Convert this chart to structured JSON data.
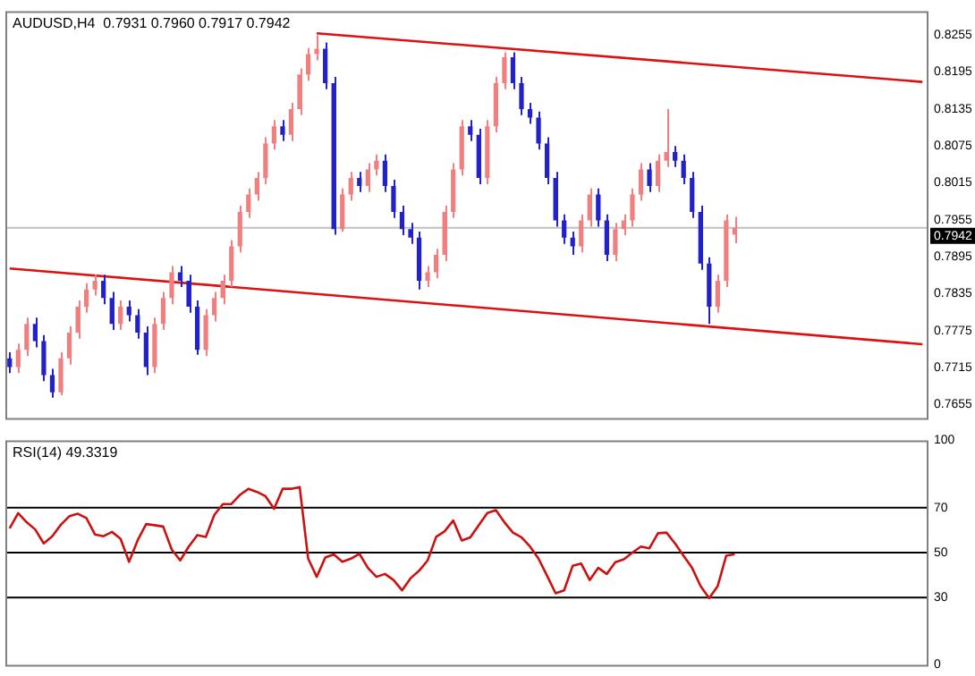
{
  "chart_data": [
    {
      "type": "candlestick",
      "title": "AUDUSD,H4  0.7931 0.7960 0.7917 0.7942",
      "categories": [
        null,
        null,
        null,
        null,
        null,
        null,
        null,
        null,
        null,
        null,
        null,
        null,
        null,
        null,
        null,
        null,
        null,
        null,
        null,
        null,
        null,
        null,
        null,
        null,
        null,
        null,
        null,
        null,
        null,
        null,
        null,
        null,
        null,
        null,
        null,
        null,
        null,
        null,
        null,
        null,
        null,
        null,
        null,
        null,
        null,
        null,
        null,
        null,
        null,
        null,
        null,
        null,
        null,
        null,
        null,
        null,
        null,
        null,
        null,
        null,
        null,
        null,
        null,
        null,
        null,
        null,
        null,
        null,
        null,
        null,
        null,
        null,
        null,
        null,
        null,
        null,
        null,
        null,
        null,
        null,
        null,
        null,
        null,
        null,
        null,
        null,
        null,
        null,
        null,
        null,
        null,
        null,
        null,
        null,
        null,
        null,
        null,
        null,
        null,
        null,
        null,
        null,
        null,
        null,
        null,
        null,
        null,
        null
      ],
      "ohlc": [
        [
          0.773,
          0.774,
          0.7706,
          0.7716
        ],
        [
          0.7716,
          0.7754,
          0.7706,
          0.7744
        ],
        [
          0.7744,
          0.7796,
          0.7734,
          0.7786
        ],
        [
          0.7786,
          0.7796,
          0.7748,
          0.7758
        ],
        [
          0.7758,
          0.7768,
          0.7693,
          0.7703
        ],
        [
          0.7703,
          0.7713,
          0.7666,
          0.7675
        ],
        [
          0.7675,
          0.774,
          0.767,
          0.773
        ],
        [
          0.773,
          0.7782,
          0.772,
          0.7772
        ],
        [
          0.7772,
          0.7824,
          0.7762,
          0.7814
        ],
        [
          0.7814,
          0.7852,
          0.7804,
          0.7842
        ],
        [
          0.7842,
          0.7866,
          0.7832,
          0.7856
        ],
        [
          0.7856,
          0.7866,
          0.7818,
          0.7828
        ],
        [
          0.7828,
          0.7838,
          0.7776,
          0.7786
        ],
        [
          0.7786,
          0.7824,
          0.7776,
          0.7814
        ],
        [
          0.7814,
          0.7824,
          0.779,
          0.78
        ],
        [
          0.78,
          0.781,
          0.7762,
          0.7772
        ],
        [
          0.7772,
          0.7782,
          0.7703,
          0.7716
        ],
        [
          0.7716,
          0.7796,
          0.7706,
          0.7786
        ],
        [
          0.7786,
          0.7838,
          0.7776,
          0.7828
        ],
        [
          0.7828,
          0.788,
          0.7818,
          0.787
        ],
        [
          0.787,
          0.788,
          0.7846,
          0.7856
        ],
        [
          0.7856,
          0.7866,
          0.7804,
          0.7814
        ],
        [
          0.7814,
          0.7824,
          0.7736,
          0.7744
        ],
        [
          0.7744,
          0.781,
          0.7734,
          0.78
        ],
        [
          0.78,
          0.7838,
          0.779,
          0.7828
        ],
        [
          0.7828,
          0.7866,
          0.7818,
          0.7856
        ],
        [
          0.7856,
          0.7922,
          0.7846,
          0.7912
        ],
        [
          0.7912,
          0.7978,
          0.7902,
          0.7968
        ],
        [
          0.7968,
          0.8006,
          0.7958,
          0.7996
        ],
        [
          0.7996,
          0.8033,
          0.7986,
          0.8023
        ],
        [
          0.8023,
          0.8089,
          0.8013,
          0.8079
        ],
        [
          0.8079,
          0.8117,
          0.8069,
          0.8107
        ],
        [
          0.8107,
          0.8117,
          0.8083,
          0.8093
        ],
        [
          0.8093,
          0.8145,
          0.8083,
          0.8135
        ],
        [
          0.8135,
          0.8201,
          0.8125,
          0.8191
        ],
        [
          0.8191,
          0.8234,
          0.8181,
          0.8224
        ],
        [
          0.8224,
          0.8255,
          0.8214,
          0.8233
        ],
        [
          0.8233,
          0.8243,
          0.8167,
          0.8177
        ],
        [
          0.8177,
          0.8187,
          0.7931,
          0.794
        ],
        [
          0.794,
          0.8006,
          0.7936,
          0.7996
        ],
        [
          0.7996,
          0.8033,
          0.7986,
          0.8023
        ],
        [
          0.8023,
          0.8033,
          0.8,
          0.801
        ],
        [
          0.801,
          0.8047,
          0.8,
          0.8037
        ],
        [
          0.8037,
          0.8061,
          0.8027,
          0.8051
        ],
        [
          0.8051,
          0.8061,
          0.8,
          0.801
        ],
        [
          0.801,
          0.802,
          0.7958,
          0.7968
        ],
        [
          0.7968,
          0.7978,
          0.793,
          0.794
        ],
        [
          0.794,
          0.795,
          0.7916,
          0.7926
        ],
        [
          0.7926,
          0.7936,
          0.7842,
          0.7856
        ],
        [
          0.7856,
          0.788,
          0.7846,
          0.787
        ],
        [
          0.787,
          0.7908,
          0.786,
          0.7898
        ],
        [
          0.7898,
          0.7978,
          0.7888,
          0.7968
        ],
        [
          0.7968,
          0.8047,
          0.7958,
          0.8037
        ],
        [
          0.8037,
          0.8117,
          0.8027,
          0.8107
        ],
        [
          0.8107,
          0.8117,
          0.8083,
          0.8093
        ],
        [
          0.8093,
          0.8103,
          0.8013,
          0.8023
        ],
        [
          0.8023,
          0.8117,
          0.8013,
          0.8107
        ],
        [
          0.8107,
          0.8187,
          0.8097,
          0.8177
        ],
        [
          0.8177,
          0.8227,
          0.8167,
          0.8219
        ],
        [
          0.8219,
          0.8227,
          0.8167,
          0.8177
        ],
        [
          0.8177,
          0.8187,
          0.8125,
          0.8135
        ],
        [
          0.8135,
          0.8145,
          0.8111,
          0.8121
        ],
        [
          0.8121,
          0.8131,
          0.8069,
          0.8079
        ],
        [
          0.8079,
          0.8089,
          0.8013,
          0.8023
        ],
        [
          0.8023,
          0.8033,
          0.7944,
          0.7954
        ],
        [
          0.7954,
          0.7964,
          0.7916,
          0.7926
        ],
        [
          0.7926,
          0.7936,
          0.7898,
          0.7912
        ],
        [
          0.7912,
          0.7964,
          0.7902,
          0.7954
        ],
        [
          0.7954,
          0.8006,
          0.7944,
          0.7996
        ],
        [
          0.7996,
          0.8006,
          0.7944,
          0.7954
        ],
        [
          0.7954,
          0.7964,
          0.7888,
          0.7898
        ],
        [
          0.7898,
          0.795,
          0.7888,
          0.794
        ],
        [
          0.794,
          0.7964,
          0.793,
          0.7954
        ],
        [
          0.7954,
          0.8006,
          0.7944,
          0.7996
        ],
        [
          0.7996,
          0.8047,
          0.7986,
          0.8037
        ],
        [
          0.8037,
          0.8047,
          0.8,
          0.801
        ],
        [
          0.801,
          0.8061,
          0.8,
          0.8051
        ],
        [
          0.8051,
          0.8135,
          0.8041,
          0.8065
        ],
        [
          0.8065,
          0.8075,
          0.8041,
          0.8051
        ],
        [
          0.8051,
          0.8061,
          0.8013,
          0.8023
        ],
        [
          0.8023,
          0.8033,
          0.7958,
          0.7968
        ],
        [
          0.7968,
          0.7978,
          0.7874,
          0.7884
        ],
        [
          0.7884,
          0.7894,
          0.7786,
          0.7814
        ],
        [
          0.7814,
          0.7866,
          0.7804,
          0.7856
        ],
        [
          0.7856,
          0.7964,
          0.7846,
          0.7954
        ],
        [
          0.7931,
          0.796,
          0.7917,
          0.7942
        ],
        null,
        null,
        null,
        null,
        null,
        null,
        null,
        null,
        null,
        null,
        null,
        null,
        null,
        null,
        null,
        null,
        null,
        null,
        null,
        null,
        null,
        null
      ],
      "colors": [
        "#2222c8",
        "#f08080",
        "#f08080",
        "#2222c8",
        "#2222c8",
        "#2222c8",
        "#f08080",
        "#f08080",
        "#f08080",
        "#f08080",
        "#f08080",
        "#2222c8",
        "#2222c8",
        "#f08080",
        "#2222c8",
        "#2222c8",
        "#2222c8",
        "#f08080",
        "#f08080",
        "#f08080",
        "#2222c8",
        "#2222c8",
        "#2222c8",
        "#f08080",
        "#f08080",
        "#f08080",
        "#f08080",
        "#f08080",
        "#f08080",
        "#f08080",
        "#f08080",
        "#f08080",
        "#2222c8",
        "#f08080",
        "#f08080",
        "#f08080",
        "#f08080",
        "#2222c8",
        "#2222c8",
        "#f08080",
        "#f08080",
        "#2222c8",
        "#f08080",
        "#f08080",
        "#2222c8",
        "#2222c8",
        "#2222c8",
        "#2222c8",
        "#2222c8",
        "#f08080",
        "#f08080",
        "#f08080",
        "#f08080",
        "#f08080",
        "#2222c8",
        "#2222c8",
        "#f08080",
        "#f08080",
        "#f08080",
        "#2222c8",
        "#2222c8",
        "#2222c8",
        "#2222c8",
        "#2222c8",
        "#2222c8",
        "#2222c8",
        "#2222c8",
        "#f08080",
        "#f08080",
        "#2222c8",
        "#2222c8",
        "#f08080",
        "#f08080",
        "#f08080",
        "#f08080",
        "#2222c8",
        "#f08080",
        "#f08080",
        "#2222c8",
        "#2222c8",
        "#2222c8",
        "#2222c8",
        "#2222c8",
        "#f08080",
        "#f08080",
        "#f08080",
        null,
        null,
        null,
        null,
        null,
        null,
        null,
        null,
        null,
        null,
        null,
        null,
        null,
        null,
        null,
        null,
        null,
        null,
        null,
        null,
        null,
        null
      ],
      "series": [
        {
          "type": "line",
          "color": "#dd1111",
          "values": [
            null,
            null,
            null,
            null,
            null,
            null,
            null,
            null,
            null,
            null,
            null,
            null,
            null,
            null,
            null,
            null,
            null,
            null,
            null,
            null,
            null,
            null,
            null,
            null,
            null,
            null,
            null,
            null,
            null,
            null,
            null,
            null,
            null,
            null,
            null,
            null,
            0.8258,
            null,
            null,
            null,
            null,
            null,
            null,
            null,
            null,
            null,
            null,
            null,
            null,
            null,
            null,
            null,
            null,
            null,
            null,
            null,
            null,
            null,
            null,
            null,
            null,
            null,
            null,
            null,
            null,
            null,
            null,
            null,
            null,
            null,
            null,
            null,
            null,
            null,
            null,
            null,
            null,
            null,
            null,
            null,
            null,
            null,
            null,
            null,
            null,
            null,
            null,
            null,
            null,
            null,
            null,
            null,
            null,
            null,
            null,
            null,
            null,
            null,
            null,
            null,
            null,
            null,
            null,
            null,
            null,
            null,
            null,
            0.8179
          ]
        },
        {
          "type": "line",
          "color": "#dd1111",
          "values": [
            0.7876,
            null,
            null,
            null,
            null,
            null,
            null,
            null,
            null,
            null,
            null,
            null,
            null,
            null,
            null,
            null,
            null,
            null,
            null,
            null,
            null,
            null,
            null,
            null,
            null,
            null,
            null,
            null,
            null,
            null,
            null,
            null,
            null,
            null,
            null,
            null,
            null,
            null,
            null,
            null,
            null,
            null,
            null,
            null,
            null,
            null,
            null,
            null,
            null,
            null,
            null,
            null,
            null,
            null,
            null,
            null,
            null,
            null,
            null,
            null,
            null,
            null,
            null,
            null,
            null,
            null,
            null,
            null,
            null,
            null,
            null,
            null,
            null,
            null,
            null,
            null,
            null,
            null,
            null,
            null,
            null,
            null,
            null,
            null,
            null,
            null,
            null,
            null,
            null,
            null,
            null,
            null,
            null,
            null,
            null,
            null,
            null,
            null,
            null,
            null,
            null,
            null,
            null,
            null,
            null,
            null,
            null,
            0.7753
          ]
        }
      ],
      "ylim": [
        0.7633,
        0.8294
      ],
      "yticks": [
        0.7655,
        0.7715,
        0.7775,
        0.7835,
        0.7895,
        0.7955,
        0.8015,
        0.8075,
        0.8135,
        0.8195,
        0.8255
      ],
      "ref_lines": [
        {
          "axis": "y",
          "value": 0.7942,
          "label": "0.7942",
          "color": "#c0c0c0"
        }
      ],
      "grid": false,
      "legend": false,
      "tick_labels": "y"
    },
    {
      "type": "line",
      "title": "RSI(14) 49.3319",
      "categories": [
        null,
        null,
        null,
        null,
        null,
        null,
        null,
        null,
        null,
        null,
        null,
        null,
        null,
        null,
        null,
        null,
        null,
        null,
        null,
        null,
        null,
        null,
        null,
        null,
        null,
        null,
        null,
        null,
        null,
        null,
        null,
        null,
        null,
        null,
        null,
        null,
        null,
        null,
        null,
        null,
        null,
        null,
        null,
        null,
        null,
        null,
        null,
        null,
        null,
        null,
        null,
        null,
        null,
        null,
        null,
        null,
        null,
        null,
        null,
        null,
        null,
        null,
        null,
        null,
        null,
        null,
        null,
        null,
        null,
        null,
        null,
        null,
        null,
        null,
        null,
        null,
        null,
        null,
        null,
        null,
        null,
        null,
        null,
        null,
        null,
        null,
        null,
        null,
        null,
        null,
        null,
        null,
        null,
        null,
        null,
        null,
        null,
        null,
        null,
        null,
        null,
        null,
        null,
        null,
        null,
        null,
        null,
        null
      ],
      "series": [
        {
          "color": "#cc1111",
          "values": [
            60.8,
            67.6,
            63.5,
            60.3,
            54.1,
            57.3,
            62.4,
            66.2,
            67.3,
            65.4,
            58.1,
            57.3,
            59.2,
            56.2,
            45.9,
            55.4,
            62.7,
            62.2,
            61.6,
            51.4,
            46.5,
            52.7,
            57.8,
            57.0,
            66.8,
            71.6,
            71.6,
            75.7,
            78.4,
            77.0,
            75.1,
            69.5,
            78.4,
            78.4,
            79.2,
            47.3,
            39.2,
            47.8,
            49.2,
            45.9,
            47.3,
            49.5,
            43.2,
            39.2,
            40.5,
            37.8,
            33.2,
            38.6,
            41.9,
            46.5,
            57.0,
            59.5,
            64.3,
            55.4,
            56.8,
            62.2,
            67.6,
            68.9,
            63.5,
            58.9,
            56.8,
            52.7,
            47.3,
            39.7,
            31.9,
            33.2,
            44.1,
            45.1,
            37.8,
            43.2,
            40.5,
            45.7,
            47.0,
            50.0,
            52.7,
            51.9,
            58.6,
            58.9,
            54.1,
            48.6,
            43.2,
            35.1,
            29.7,
            35.1,
            48.6,
            49.3,
            null,
            null,
            null,
            null,
            null,
            null,
            null,
            null,
            null,
            null,
            null,
            null,
            null,
            null,
            null,
            null,
            null,
            null,
            null,
            null,
            null,
            null
          ]
        }
      ],
      "ylim": [
        0,
        100
      ],
      "yticks": [
        0,
        30,
        50,
        70,
        100
      ],
      "ref_lines": [
        {
          "axis": "y",
          "value": 70,
          "color": "#000000"
        },
        {
          "axis": "y",
          "value": 50,
          "color": "#000000"
        },
        {
          "axis": "y",
          "value": 30,
          "color": "#000000"
        }
      ],
      "grid": false,
      "legend": false,
      "marker": "none",
      "line_style": "solid",
      "tick_labels": "y"
    }
  ]
}
